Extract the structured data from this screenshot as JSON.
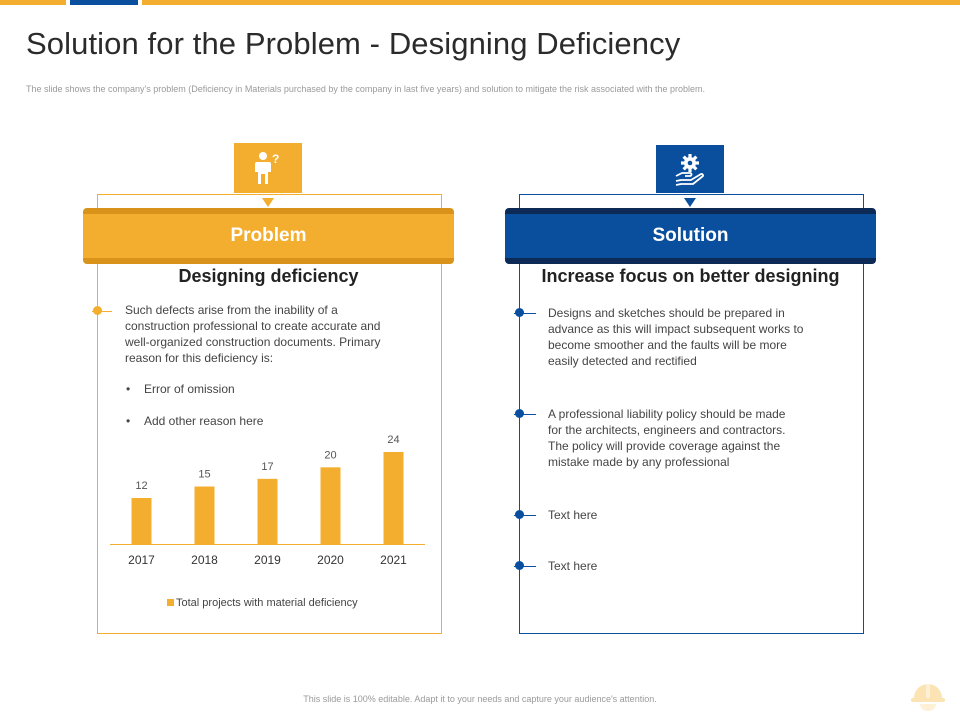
{
  "slide": {
    "title": "Solution for the Problem - Designing Deficiency",
    "subtitle": "The slide shows the company's problem (Deficiency in Materials purchased by the company in last five years) and solution to mitigate  the risk associated with the problem.",
    "footer": "This slide is 100% editable. Adapt it to your needs and capture your audience's attention."
  },
  "colors": {
    "accent_orange": "#f4ae2f",
    "accent_blue": "#0a4f9e"
  },
  "problem": {
    "icon": "person-question-icon",
    "banner": "Problem",
    "heading": "Designing deficiency",
    "description_lines": [
      "Such defects arise from the inability of a",
      "construction professional to create accurate and",
      "well-organized  construction documents. Primary",
      "reason for this deficiency is:"
    ],
    "bullets": [
      "Error of omission",
      "Add other reason here"
    ]
  },
  "solution": {
    "icon": "hand-gear-icon",
    "banner": "Solution",
    "heading": "Increase focus on better designing",
    "points": [
      {
        "lines": [
          "Designs and sketches should be prepared  in",
          "advance  as this will impact subsequent works to",
          "become smoother and the faults will be more",
          "easily detected and rectified"
        ]
      },
      {
        "lines": [
          "A professional  liability policy should be made",
          "for the architects, engineers and contractors.",
          "The policy will provide  coverage  against the",
          "mistake made by any professional"
        ]
      },
      {
        "lines": [
          "Text here"
        ]
      },
      {
        "lines": [
          "Text here"
        ]
      }
    ]
  },
  "chart_data": {
    "type": "bar",
    "categories": [
      "2017",
      "2018",
      "2019",
      "2020",
      "2021"
    ],
    "values": [
      12,
      15,
      17,
      20,
      24
    ],
    "series_name": "Total projects with material deficiency",
    "color": "#f4ae2f",
    "ylim": [
      0,
      24
    ],
    "title": "",
    "xlabel": "",
    "ylabel": ""
  }
}
